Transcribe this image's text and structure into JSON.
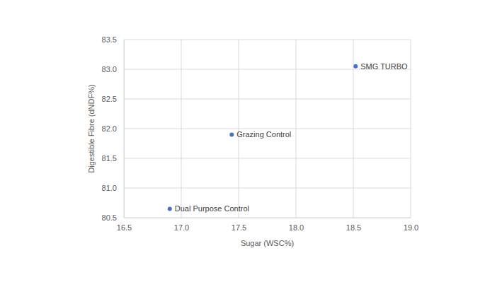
{
  "chart_data": {
    "type": "scatter",
    "x_label": "Sugar (WSC%)",
    "y_label": "Digestible Fibre (dNDF%)",
    "x": [
      18.52,
      17.44,
      16.9
    ],
    "values": [
      83.05,
      81.9,
      80.65
    ],
    "labels": [
      "SMG TURBO",
      "Grazing Control",
      "Dual Purpose Control"
    ],
    "color": "#4472c4",
    "marker": "circle",
    "grid": true,
    "xlim": [
      16.5,
      19.0
    ],
    "xticks": [
      {
        "value": 16.5,
        "label": "16.5"
      },
      {
        "value": 17.0,
        "label": "17.0"
      },
      {
        "value": 17.5,
        "label": "17.5"
      },
      {
        "value": 18.0,
        "label": "18.0"
      },
      {
        "value": 18.5,
        "label": "18.5"
      },
      {
        "value": 19.0,
        "label": "19.0"
      }
    ],
    "ylim": [
      80.5,
      83.5
    ],
    "yticks": [
      {
        "value": 80.5,
        "label": "80.5"
      },
      {
        "value": 81.0,
        "label": "81.0"
      },
      {
        "value": 81.5,
        "label": "81.5"
      },
      {
        "value": 82.0,
        "label": "82.0"
      },
      {
        "value": 82.5,
        "label": "82.5"
      },
      {
        "value": 83.0,
        "label": "83.0"
      },
      {
        "value": 83.5,
        "label": "83.5"
      }
    ]
  }
}
